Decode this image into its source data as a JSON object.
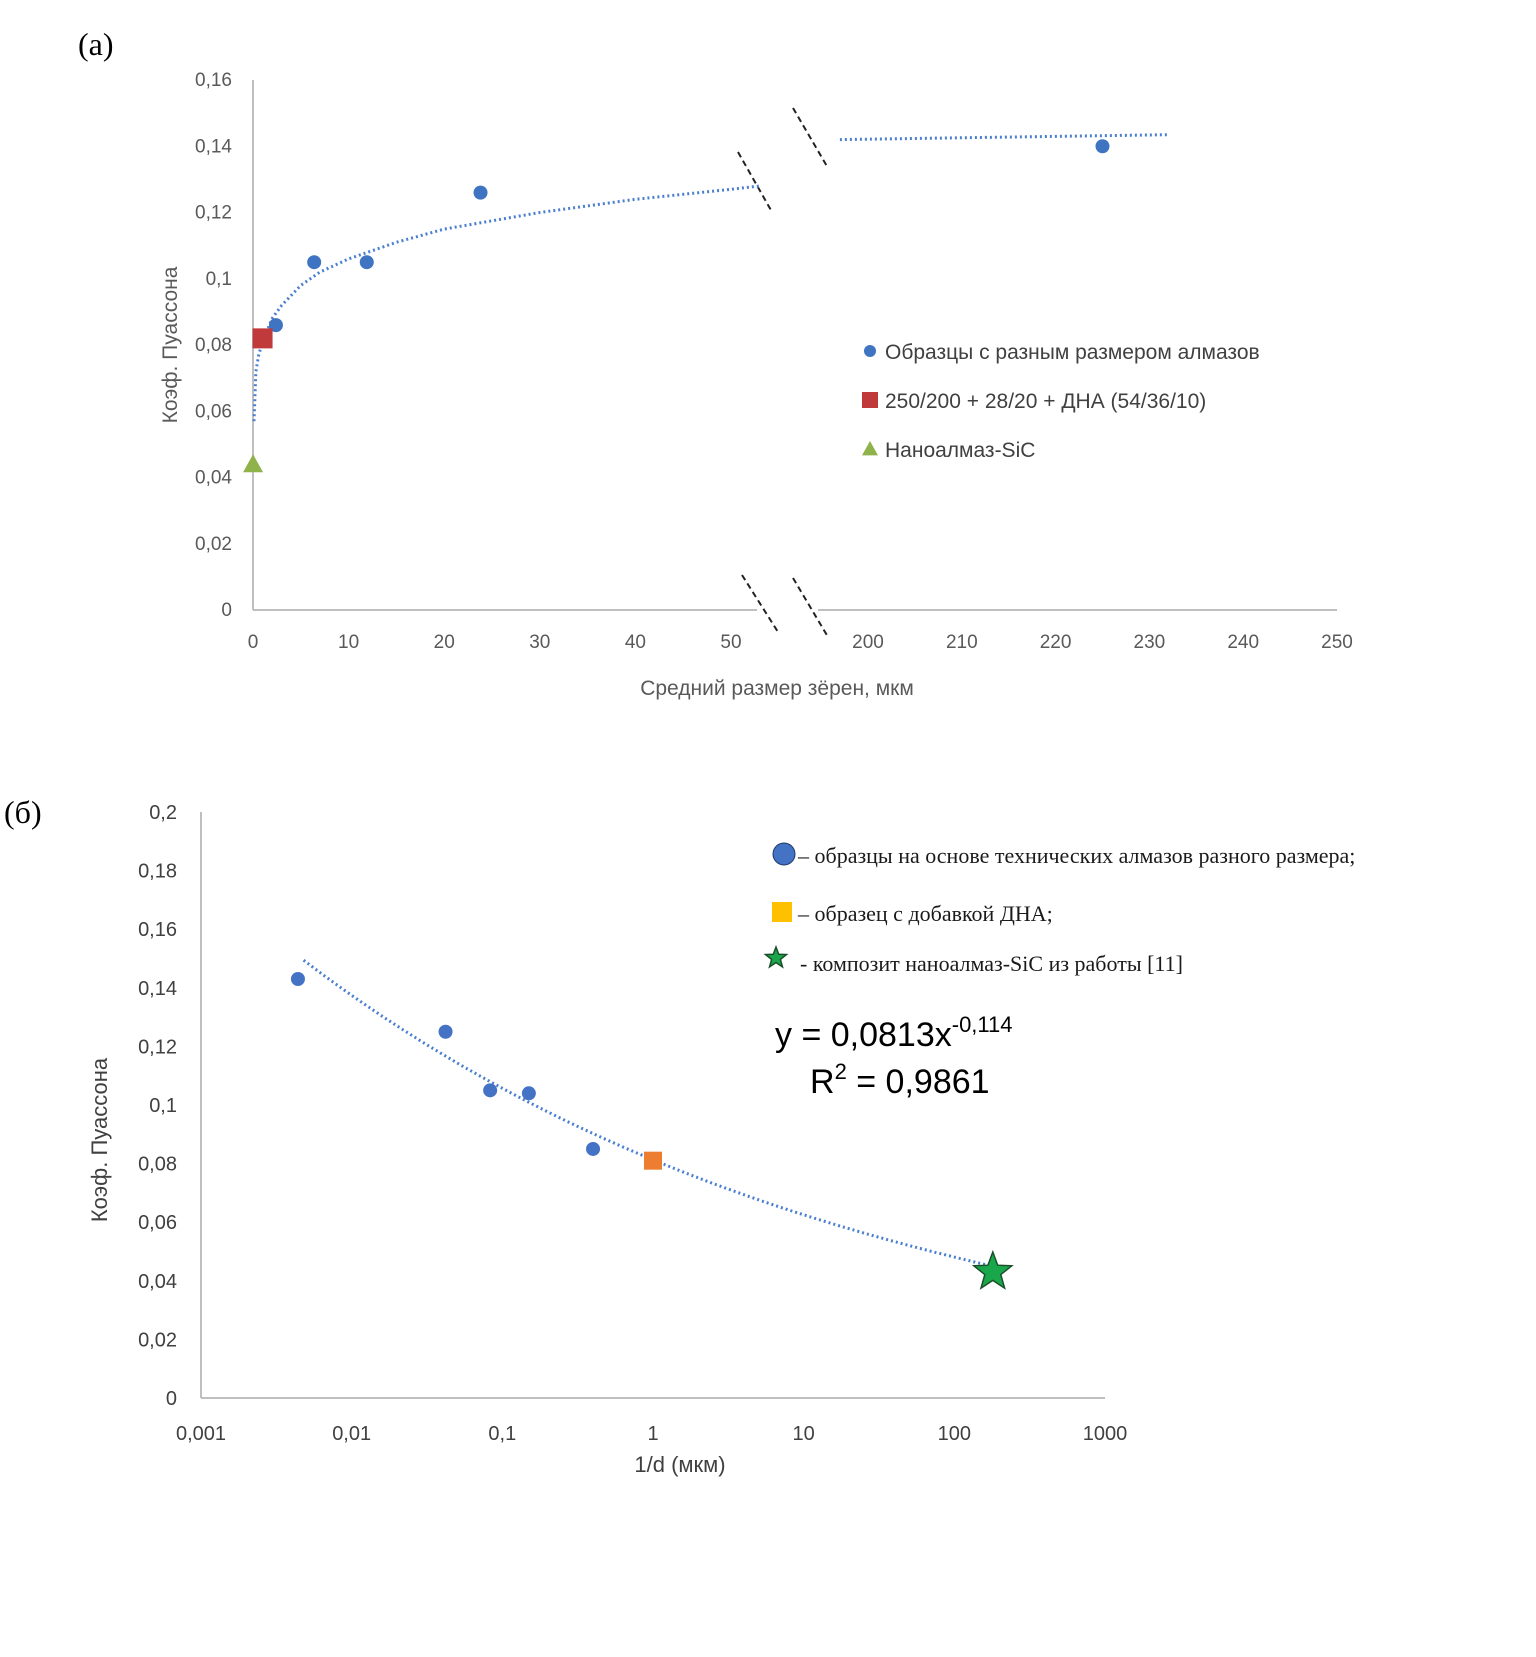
{
  "chart_data": [
    {
      "panel_label": "(а)",
      "type": "scatter",
      "xlabel": "Средний размер зёрен, мкм",
      "ylabel": "Коэф. Пуассона",
      "x_axis": "broken",
      "x_segments": [
        {
          "range": [
            0,
            50
          ],
          "ticks": [
            0,
            10,
            20,
            30,
            40,
            50
          ]
        },
        {
          "range": [
            200,
            250
          ],
          "ticks": [
            200,
            210,
            220,
            230,
            240,
            250
          ]
        }
      ],
      "ylim": [
        0,
        0.16
      ],
      "yticks": [
        "0",
        "0,02",
        "0,04",
        "0,06",
        "0,08",
        "0,1",
        "0,12",
        "0,14",
        "0,16"
      ],
      "grid": false,
      "legend_position": "right",
      "series": [
        {
          "name": "Образцы с разным размером алмазов",
          "marker": "circle",
          "color": "#3f74c2",
          "x": [
            2.4,
            6.4,
            11.9,
            23.8,
            225
          ],
          "y": [
            0.086,
            0.105,
            0.105,
            0.126,
            0.14
          ]
        },
        {
          "name": "250/200 + 28/20 + ДНА (54/36/10)",
          "marker": "square",
          "color": "#c0393b",
          "x": [
            1.0
          ],
          "y": [
            0.082
          ]
        },
        {
          "name": "Наноалмаз-SiC",
          "marker": "triangle",
          "color": "#8fb24a",
          "x": [
            0.0055
          ],
          "y": [
            0.044
          ]
        }
      ],
      "trendline": {
        "type": "dotted",
        "color": "#4a7fd0",
        "segments": [
          {
            "x": [
              0.1,
              0.3,
              0.6,
              1,
              2,
              3,
              5,
              7,
              10,
              15,
              20,
              30,
              40,
              50,
              53
            ],
            "y": [
              0.057,
              0.072,
              0.077,
              0.081,
              0.088,
              0.092,
              0.098,
              0.102,
              0.106,
              0.111,
              0.115,
              0.12,
              0.124,
              0.127,
              0.128
            ]
          },
          {
            "x": [
              197,
              232
            ],
            "y": [
              0.142,
              0.1435
            ]
          }
        ]
      }
    },
    {
      "panel_label": "(б)",
      "type": "scatter",
      "xlabel": "1/d (мкм)",
      "ylabel": "Коэф. Пуассона",
      "x_scale": "log",
      "xlim": [
        0.001,
        1000
      ],
      "xticks": [
        "0,001",
        "0,01",
        "0,1",
        "1",
        "10",
        "100",
        "1000"
      ],
      "ylim": [
        0,
        0.2
      ],
      "yticks": [
        "0",
        "0,02",
        "0,04",
        "0,06",
        "0,08",
        "0,1",
        "0,12",
        "0,14",
        "0,16",
        "0,18",
        "0,2"
      ],
      "grid": false,
      "legend_position": "top-right",
      "series": [
        {
          "name": "– образцы на основе технических алмазов разного размера;",
          "marker": "circle",
          "color": "#4472c4",
          "x": [
            0.0044,
            0.042,
            0.083,
            0.15,
            0.4
          ],
          "y": [
            0.143,
            0.125,
            0.105,
            0.104,
            0.085
          ]
        },
        {
          "name": "– образец с добавкой ДНА;",
          "marker": "square",
          "color": "#ed7d31",
          "legend_color": "#ffc000",
          "x": [
            1.0
          ],
          "y": [
            0.081
          ]
        },
        {
          "name": "- композит наноалмаз-SiC из работы [11]",
          "marker": "star",
          "color": "#1aa64a",
          "x": [
            180
          ],
          "y": [
            0.043
          ]
        }
      ],
      "trendline": {
        "type": "power",
        "color": "#4a7fd0",
        "a": 0.0813,
        "b": -0.114,
        "x_from": 0.0048,
        "x_to": 180
      },
      "equation": {
        "prefix": "y = 0,0813x",
        "exponent": "-0,114",
        "r2_label": "R",
        "r2_sup": "2",
        "r2_value": " = 0,9861"
      }
    }
  ]
}
